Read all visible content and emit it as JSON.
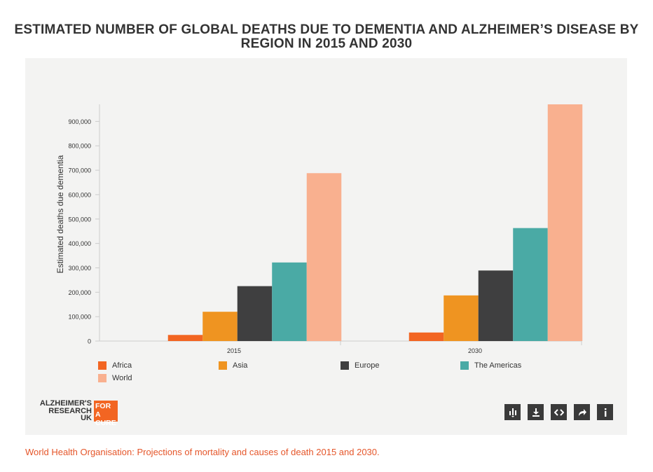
{
  "title": "ESTIMATED NUMBER OF GLOBAL DEATHS DUE TO DEMENTIA AND ALZHEIMER’S DISEASE BY REGION IN 2015 AND 2030",
  "source": "World Health Organisation: Projections of mortality and causes of death 2015 and 2030.",
  "logo": {
    "line1": "ALZHEIMER'S",
    "line2": "RESEARCH",
    "line3": "UK",
    "box_line1": "FOR A",
    "box_line2": "CURE"
  },
  "toolbar": {
    "buttons": [
      {
        "name": "data-icon"
      },
      {
        "name": "download-icon"
      },
      {
        "name": "embed-icon"
      },
      {
        "name": "share-icon"
      },
      {
        "name": "info-icon"
      }
    ]
  },
  "chart_data": {
    "type": "bar",
    "title": "",
    "xlabel": "",
    "ylabel": "Estimated deaths due dementia",
    "categories": [
      "2015",
      "2030"
    ],
    "ylim": [
      0,
      970000
    ],
    "yticks": [
      0,
      100000,
      200000,
      300000,
      400000,
      500000,
      600000,
      700000,
      800000,
      900000
    ],
    "ytick_labels": [
      "0",
      "100,000",
      "200,000",
      "300,000",
      "400,000",
      "500,000",
      "600,000",
      "700,000",
      "800,000",
      "900,000"
    ],
    "grid": false,
    "legend_position": "bottom",
    "series": [
      {
        "name": "Africa",
        "color": "#f26522",
        "values": [
          25000,
          35000
        ]
      },
      {
        "name": "Asia",
        "color": "#ef9421",
        "values": [
          120000,
          187000
        ]
      },
      {
        "name": "Europe",
        "color": "#3f3f40",
        "values": [
          225000,
          289000
        ]
      },
      {
        "name": "The Americas",
        "color": "#4aaaa5",
        "values": [
          322000,
          463000
        ]
      },
      {
        "name": "World",
        "color": "#f9b08f",
        "values": [
          688000,
          970000
        ]
      }
    ]
  }
}
